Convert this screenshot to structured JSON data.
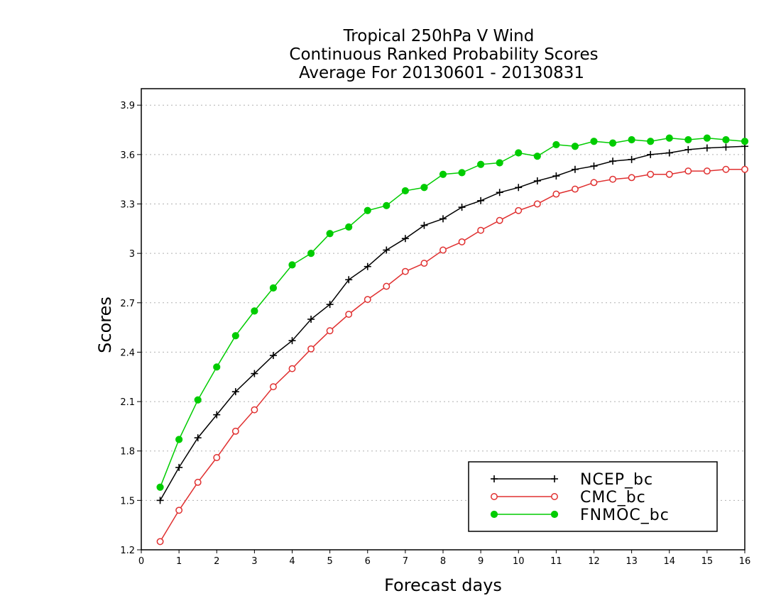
{
  "chart_data": {
    "type": "line",
    "title_lines": [
      "Tropical 250hPa V Wind",
      "Continuous Ranked Probability Scores",
      "Average For 20130601 - 20130831"
    ],
    "xlabel": "Forecast days",
    "ylabel": "Scores",
    "xlim": [
      0,
      16
    ],
    "ylim": [
      1.2,
      4.0
    ],
    "xticks": [
      0,
      1,
      2,
      3,
      4,
      5,
      6,
      7,
      8,
      9,
      10,
      11,
      12,
      13,
      14,
      15,
      16
    ],
    "yticks": [
      1.2,
      1.5,
      1.8,
      2.1,
      2.4,
      2.7,
      3.0,
      3.3,
      3.6,
      3.9
    ],
    "ytick_labels": [
      "1.2",
      "1.5",
      "1.8",
      "2.1",
      "2.4",
      "2.7",
      "3",
      "3.3",
      "3.6",
      "3.9"
    ],
    "grid": "horizontal dotted",
    "legend_position": "bottom-right",
    "x": [
      0.5,
      1,
      1.5,
      2,
      2.5,
      3,
      3.5,
      4,
      4.5,
      5,
      5.5,
      6,
      6.5,
      7,
      7.5,
      8,
      8.5,
      9,
      9.5,
      10,
      10.5,
      11,
      11.5,
      12,
      12.5,
      13,
      13.5,
      14,
      14.5,
      15,
      15.5,
      16
    ],
    "series": [
      {
        "name": "NCEP_bc",
        "color": "#000000",
        "marker": "plus",
        "values": [
          1.5,
          1.7,
          1.88,
          2.02,
          2.16,
          2.27,
          2.38,
          2.47,
          2.6,
          2.69,
          2.84,
          2.92,
          3.02,
          3.09,
          3.17,
          3.21,
          3.28,
          3.32,
          3.37,
          3.4,
          3.44,
          3.47,
          3.51,
          3.53,
          3.56,
          3.57,
          3.6,
          3.61,
          3.63,
          3.64,
          3.645,
          3.65
        ]
      },
      {
        "name": "CMC_bc",
        "color": "#e03030",
        "marker": "open-circle",
        "values": [
          1.25,
          1.44,
          1.61,
          1.76,
          1.92,
          2.05,
          2.19,
          2.3,
          2.42,
          2.53,
          2.63,
          2.72,
          2.8,
          2.89,
          2.94,
          3.02,
          3.07,
          3.14,
          3.2,
          3.26,
          3.3,
          3.36,
          3.39,
          3.43,
          3.45,
          3.46,
          3.48,
          3.48,
          3.5,
          3.5,
          3.51,
          3.51
        ]
      },
      {
        "name": "FNMOC_bc",
        "color": "#00cc00",
        "marker": "filled-circle",
        "values": [
          1.58,
          1.87,
          2.11,
          2.31,
          2.5,
          2.65,
          2.79,
          2.93,
          3.0,
          3.12,
          3.16,
          3.26,
          3.29,
          3.38,
          3.4,
          3.48,
          3.49,
          3.54,
          3.55,
          3.61,
          3.59,
          3.66,
          3.65,
          3.68,
          3.67,
          3.69,
          3.68,
          3.7,
          3.69,
          3.7,
          3.69,
          3.68
        ]
      }
    ]
  }
}
